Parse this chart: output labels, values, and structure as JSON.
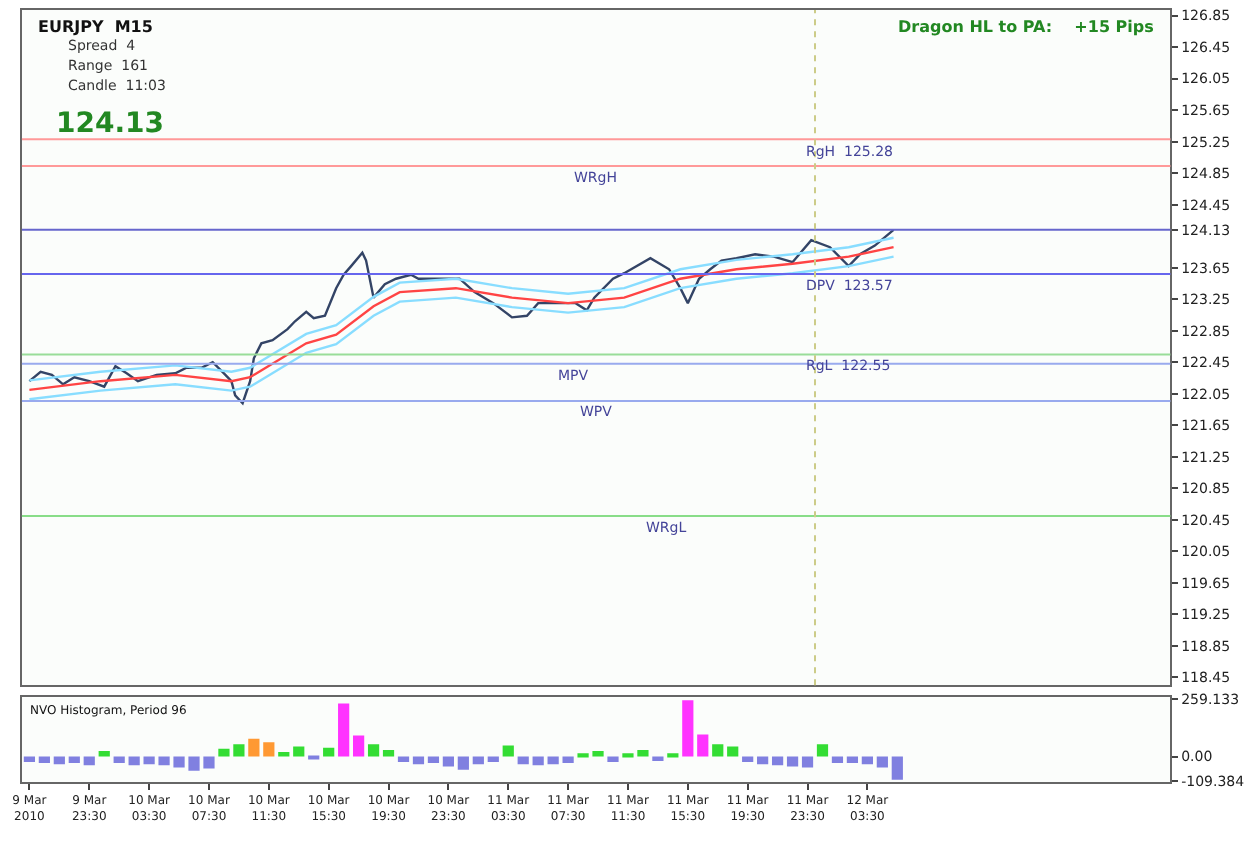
{
  "chart_data": [
    {
      "type": "line",
      "title": "EURJPY  M15",
      "annotations": [
        "Spread  4",
        "Range  161",
        "Candle  11:03",
        "124.13",
        "Dragon HL to PA:    +15 Pips"
      ],
      "xlim": [
        "2010-03-09T19:00",
        "2010-03-12T23:45"
      ],
      "ylim": [
        118.35,
        126.92
      ],
      "yticks": [
        126.85,
        126.45,
        126.05,
        125.65,
        125.25,
        124.85,
        124.45,
        {
          "value": 124.13,
          "label": "124.13"
        },
        123.65,
        123.25,
        122.85,
        122.45,
        122.05,
        121.65,
        121.25,
        120.85,
        120.45,
        120.05,
        119.65,
        119.25,
        118.85,
        118.45
      ],
      "tick_labels": "y",
      "series": [
        {
          "color": "#334466",
          "x": [
            "2010-03-09T19:30",
            "2010-03-09T20:15",
            "2010-03-09T21:00",
            "2010-03-09T21:45",
            "2010-03-09T22:30",
            "2010-03-09T23:30",
            "2010-03-10T00:30",
            "2010-03-10T01:15",
            "2010-03-10T02:00",
            "2010-03-10T02:45",
            "2010-03-10T04:00",
            "2010-03-10T05:15",
            "2010-03-10T06:00",
            "2010-03-10T07:00",
            "2010-03-10T07:45",
            "2010-03-10T08:30",
            "2010-03-10T09:00",
            "2010-03-10T09:15",
            "2010-03-10T09:45",
            "2010-03-10T10:15",
            "2010-03-10T10:30",
            "2010-03-10T11:00",
            "2010-03-10T11:45",
            "2010-03-10T12:45",
            "2010-03-10T13:15",
            "2010-03-10T14:00",
            "2010-03-10T14:30",
            "2010-03-10T15:15",
            "2010-03-10T16:00",
            "2010-03-10T16:30",
            "2010-03-10T17:00",
            "2010-03-10T17:45",
            "2010-03-10T18:00",
            "2010-03-10T18:30",
            "2010-03-10T19:15",
            "2010-03-10T20:00",
            "2010-03-10T21:00",
            "2010-03-10T21:30",
            "2010-03-10T22:30",
            "2010-03-10T23:15",
            "2010-03-11T00:15",
            "2010-03-11T01:15",
            "2010-03-11T02:30",
            "2010-03-11T03:45",
            "2010-03-11T04:45",
            "2010-03-11T05:30",
            "2010-03-11T06:45",
            "2010-03-11T08:00",
            "2010-03-11T08:45",
            "2010-03-11T09:15",
            "2010-03-11T10:30",
            "2010-03-11T11:15",
            "2010-03-11T13:00",
            "2010-03-11T14:15",
            "2010-03-11T15:00",
            "2010-03-11T15:30",
            "2010-03-11T16:15",
            "2010-03-11T17:00",
            "2010-03-11T17:45",
            "2010-03-11T18:45",
            "2010-03-11T20:00",
            "2010-03-11T21:15",
            "2010-03-11T22:30",
            "2010-03-11T23:45",
            "2010-03-12T01:00",
            "2010-03-12T02:15",
            "2010-03-12T03:00",
            "2010-03-12T04:00",
            "2010-03-12T05:15"
          ],
          "values": [
            122.21,
            122.33,
            122.29,
            122.17,
            122.26,
            122.21,
            122.14,
            122.4,
            122.31,
            122.21,
            122.29,
            122.31,
            122.38,
            122.38,
            122.45,
            122.31,
            122.21,
            122.03,
            121.93,
            122.21,
            122.5,
            122.69,
            122.73,
            122.87,
            122.97,
            123.09,
            123.01,
            123.04,
            123.39,
            123.56,
            123.67,
            123.84,
            123.74,
            123.27,
            123.44,
            123.51,
            123.56,
            123.51,
            123.51,
            123.51,
            123.51,
            123.34,
            123.2,
            123.02,
            123.04,
            123.2,
            123.2,
            123.2,
            123.11,
            123.27,
            123.51,
            123.58,
            123.77,
            123.63,
            123.39,
            123.2,
            123.51,
            123.63,
            123.74,
            123.77,
            123.82,
            123.79,
            123.72,
            124.0,
            123.91,
            123.67,
            123.82,
            123.93,
            124.13
          ]
        },
        {
          "color": "#ff4444",
          "x": [
            "2010-03-09T19:30",
            "2010-03-10T00:15",
            "2010-03-10T05:15",
            "2010-03-10T09:00",
            "2010-03-10T10:15",
            "2010-03-10T14:00",
            "2010-03-10T16:00",
            "2010-03-10T18:30",
            "2010-03-10T20:15",
            "2010-03-11T00:00",
            "2010-03-11T03:45",
            "2010-03-11T07:30",
            "2010-03-11T11:15",
            "2010-03-11T15:00",
            "2010-03-11T18:45",
            "2010-03-11T22:30",
            "2010-03-12T02:15",
            "2010-03-12T05:15"
          ],
          "values": [
            122.1,
            122.21,
            122.29,
            122.21,
            122.26,
            122.69,
            122.8,
            123.16,
            123.34,
            123.39,
            123.27,
            123.2,
            123.27,
            123.51,
            123.63,
            123.7,
            123.79,
            123.91
          ]
        },
        {
          "color": "#88ddff",
          "x": [
            "2010-03-09T19:30",
            "2010-03-10T00:15",
            "2010-03-10T05:15",
            "2010-03-10T09:00",
            "2010-03-10T10:15",
            "2010-03-10T14:00",
            "2010-03-10T16:00",
            "2010-03-10T18:30",
            "2010-03-10T20:15",
            "2010-03-11T00:00",
            "2010-03-11T03:45",
            "2010-03-11T07:30",
            "2010-03-11T11:15",
            "2010-03-11T15:00",
            "2010-03-11T18:45",
            "2010-03-11T22:30",
            "2010-03-12T02:15",
            "2010-03-12T05:15"
          ],
          "values": [
            122.22,
            122.33,
            122.41,
            122.33,
            122.38,
            122.81,
            122.92,
            123.28,
            123.46,
            123.51,
            123.39,
            123.32,
            123.39,
            123.63,
            123.75,
            123.82,
            123.91,
            124.03
          ]
        },
        {
          "color": "#88ddff",
          "x": [
            "2010-03-09T19:30",
            "2010-03-10T00:15",
            "2010-03-10T05:15",
            "2010-03-10T09:00",
            "2010-03-10T10:15",
            "2010-03-10T14:00",
            "2010-03-10T16:00",
            "2010-03-10T18:30",
            "2010-03-10T20:15",
            "2010-03-11T00:00",
            "2010-03-11T03:45",
            "2010-03-11T07:30",
            "2010-03-11T11:15",
            "2010-03-11T15:00",
            "2010-03-11T18:45",
            "2010-03-11T22:30",
            "2010-03-12T02:15",
            "2010-03-12T05:15"
          ],
          "values": [
            121.98,
            122.09,
            122.17,
            122.09,
            122.14,
            122.57,
            122.68,
            123.04,
            123.22,
            123.27,
            123.15,
            123.08,
            123.15,
            123.39,
            123.51,
            123.58,
            123.67,
            123.79
          ]
        }
      ],
      "ref_lines": [
        {
          "axis": "y",
          "value": 124.94,
          "label": "WRgH",
          "color": "#ff9999"
        },
        {
          "axis": "y",
          "value": 125.28,
          "label": "RgH  125.28",
          "color": "#ff9999"
        },
        {
          "axis": "y",
          "value": 124.13,
          "color": "#6666cc"
        },
        {
          "axis": "y",
          "value": 123.57,
          "label": "DPV  123.57",
          "color": "#6666ee"
        },
        {
          "axis": "y",
          "value": 122.55,
          "label": "RgL  122.55",
          "color": "#99dd99"
        },
        {
          "axis": "y",
          "value": 122.43,
          "label": "MPV",
          "color": "#99aaee"
        },
        {
          "axis": "y",
          "value": 121.96,
          "label": "WPV",
          "color": "#99aaee"
        },
        {
          "axis": "y",
          "value": 120.5,
          "label": "WRgL",
          "color": "#88dd88"
        },
        {
          "axis": "x",
          "value": "2010-03-12T00:00",
          "color": "#cccc88",
          "line_style": "dotted"
        }
      ]
    },
    {
      "type": "bar",
      "title": "NVO Histogram, Period 96",
      "xlim": [
        "2010-03-09T19:00",
        "2010-03-12T23:45"
      ],
      "xticks": [
        {
          "value": "2010-03-09T19:30",
          "label": "9 Mar 2010"
        },
        {
          "value": "2010-03-09T23:30",
          "label": "9 Mar 23:30"
        },
        {
          "value": "2010-03-10T03:30",
          "label": "10 Mar 03:30"
        },
        {
          "value": "2010-03-10T07:30",
          "label": "10 Mar 07:30"
        },
        {
          "value": "2010-03-10T11:30",
          "label": "10 Mar 11:30"
        },
        {
          "value": "2010-03-10T15:30",
          "label": "10 Mar 15:30"
        },
        {
          "value": "2010-03-10T19:30",
          "label": "10 Mar 19:30"
        },
        {
          "value": "2010-03-10T23:30",
          "label": "10 Mar 23:30"
        },
        {
          "value": "2010-03-11T03:30",
          "label": "11 Mar 03:30"
        },
        {
          "value": "2010-03-11T07:30",
          "label": "11 Mar 07:30"
        },
        {
          "value": "2010-03-11T11:30",
          "label": "11 Mar 11:30"
        },
        {
          "value": "2010-03-11T15:30",
          "label": "11 Mar 15:30"
        },
        {
          "value": "2010-03-11T19:30",
          "label": "11 Mar 19:30"
        },
        {
          "value": "2010-03-11T23:30",
          "label": "11 Mar 23:30"
        },
        {
          "value": "2010-03-12T03:30",
          "label": "12 Mar 03:30"
        }
      ],
      "ylim": [
        -115,
        268
      ],
      "yticks": [
        259.133,
        {
          "value": 0,
          "label": "0.00"
        },
        -109.384
      ],
      "x": [
        "2010-03-09T19:30",
        "2010-03-09T20:30",
        "2010-03-09T21:30",
        "2010-03-09T22:30",
        "2010-03-09T23:30",
        "2010-03-10T00:30",
        "2010-03-10T01:30",
        "2010-03-10T02:30",
        "2010-03-10T03:30",
        "2010-03-10T04:30",
        "2010-03-10T05:30",
        "2010-03-10T06:30",
        "2010-03-10T07:30",
        "2010-03-10T08:30",
        "2010-03-10T09:30",
        "2010-03-10T10:30",
        "2010-03-10T11:30",
        "2010-03-10T12:30",
        "2010-03-10T13:30",
        "2010-03-10T14:30",
        "2010-03-10T15:30",
        "2010-03-10T16:30",
        "2010-03-10T17:30",
        "2010-03-10T18:30",
        "2010-03-10T19:30",
        "2010-03-10T20:30",
        "2010-03-10T21:30",
        "2010-03-10T22:30",
        "2010-03-10T23:30",
        "2010-03-11T00:30",
        "2010-03-11T01:30",
        "2010-03-11T02:30",
        "2010-03-11T03:30",
        "2010-03-11T04:30",
        "2010-03-11T05:30",
        "2010-03-11T06:30",
        "2010-03-11T07:30",
        "2010-03-11T08:30",
        "2010-03-11T09:30",
        "2010-03-11T10:30",
        "2010-03-11T11:30",
        "2010-03-11T12:30",
        "2010-03-11T13:30",
        "2010-03-11T14:30",
        "2010-03-11T15:30",
        "2010-03-11T16:30",
        "2010-03-11T17:30",
        "2010-03-11T18:30",
        "2010-03-11T19:30",
        "2010-03-11T20:30",
        "2010-03-11T21:30",
        "2010-03-11T22:30",
        "2010-03-11T23:30",
        "2010-03-12T00:30",
        "2010-03-12T01:30",
        "2010-03-12T02:30",
        "2010-03-12T03:30",
        "2010-03-12T04:30",
        "2010-03-12T05:30"
      ],
      "values": [
        -25,
        -30,
        -35,
        -30,
        -40,
        25,
        -30,
        -40,
        -35,
        -40,
        -50,
        -65,
        -55,
        35,
        55,
        80,
        65,
        20,
        45,
        -10,
        40,
        240,
        95,
        55,
        30,
        -25,
        -35,
        -30,
        -45,
        -60,
        -35,
        -25,
        50,
        -35,
        -40,
        -35,
        -30,
        15,
        25,
        -25,
        15,
        30,
        -20,
        15,
        255,
        100,
        55,
        45,
        -25,
        -35,
        -40,
        -45,
        -50,
        55,
        -30,
        -30,
        -35,
        -50,
        -105
      ],
      "colors": [
        "#8080e0",
        "#8080e0",
        "#8080e0",
        "#8080e0",
        "#8080e0",
        "#33dd33",
        "#8080e0",
        "#8080e0",
        "#8080e0",
        "#8080e0",
        "#8080e0",
        "#8080e0",
        "#8080e0",
        "#33dd33",
        "#33dd33",
        "#ff9933",
        "#ff9933",
        "#33dd33",
        "#33dd33",
        "#8080e0",
        "#33dd33",
        "#ff33ff",
        "#ff33ff",
        "#33dd33",
        "#33dd33",
        "#8080e0",
        "#8080e0",
        "#8080e0",
        "#8080e0",
        "#8080e0",
        "#8080e0",
        "#8080e0",
        "#33dd33",
        "#8080e0",
        "#8080e0",
        "#8080e0",
        "#8080e0",
        "#33dd33",
        "#33dd33",
        "#8080e0",
        "#33dd33",
        "#33dd33",
        "#8080e0",
        "#33dd33",
        "#ff33ff",
        "#ff33ff",
        "#33dd33",
        "#33dd33",
        "#8080e0",
        "#8080e0",
        "#8080e0",
        "#8080e0",
        "#8080e0",
        "#33dd33",
        "#8080e0",
        "#8080e0",
        "#8080e0",
        "#8080e0",
        "#8080e0"
      ]
    }
  ]
}
